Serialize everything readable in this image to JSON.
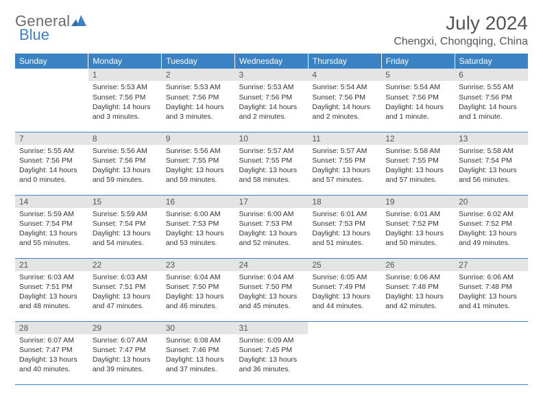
{
  "brand": {
    "name_part1": "General",
    "name_part2": "Blue"
  },
  "title": "July 2024",
  "location": "Chengxi, Chongqing, China",
  "weekdays": [
    "Sunday",
    "Monday",
    "Tuesday",
    "Wednesday",
    "Thursday",
    "Friday",
    "Saturday"
  ],
  "colors": {
    "header_bg": "#3b82c4",
    "daynum_bg": "#e4e4e4",
    "rule": "#3b82c4"
  },
  "weeks": [
    [
      {
        "n": "",
        "sr": "",
        "ss": "",
        "dl": ""
      },
      {
        "n": "1",
        "sr": "5:53 AM",
        "ss": "7:56 PM",
        "dl": "14 hours and 3 minutes."
      },
      {
        "n": "2",
        "sr": "5:53 AM",
        "ss": "7:56 PM",
        "dl": "14 hours and 3 minutes."
      },
      {
        "n": "3",
        "sr": "5:53 AM",
        "ss": "7:56 PM",
        "dl": "14 hours and 2 minutes."
      },
      {
        "n": "4",
        "sr": "5:54 AM",
        "ss": "7:56 PM",
        "dl": "14 hours and 2 minutes."
      },
      {
        "n": "5",
        "sr": "5:54 AM",
        "ss": "7:56 PM",
        "dl": "14 hours and 1 minute."
      },
      {
        "n": "6",
        "sr": "5:55 AM",
        "ss": "7:56 PM",
        "dl": "14 hours and 1 minute."
      }
    ],
    [
      {
        "n": "7",
        "sr": "5:55 AM",
        "ss": "7:56 PM",
        "dl": "14 hours and 0 minutes."
      },
      {
        "n": "8",
        "sr": "5:56 AM",
        "ss": "7:56 PM",
        "dl": "13 hours and 59 minutes."
      },
      {
        "n": "9",
        "sr": "5:56 AM",
        "ss": "7:55 PM",
        "dl": "13 hours and 59 minutes."
      },
      {
        "n": "10",
        "sr": "5:57 AM",
        "ss": "7:55 PM",
        "dl": "13 hours and 58 minutes."
      },
      {
        "n": "11",
        "sr": "5:57 AM",
        "ss": "7:55 PM",
        "dl": "13 hours and 57 minutes."
      },
      {
        "n": "12",
        "sr": "5:58 AM",
        "ss": "7:55 PM",
        "dl": "13 hours and 57 minutes."
      },
      {
        "n": "13",
        "sr": "5:58 AM",
        "ss": "7:54 PM",
        "dl": "13 hours and 56 minutes."
      }
    ],
    [
      {
        "n": "14",
        "sr": "5:59 AM",
        "ss": "7:54 PM",
        "dl": "13 hours and 55 minutes."
      },
      {
        "n": "15",
        "sr": "5:59 AM",
        "ss": "7:54 PM",
        "dl": "13 hours and 54 minutes."
      },
      {
        "n": "16",
        "sr": "6:00 AM",
        "ss": "7:53 PM",
        "dl": "13 hours and 53 minutes."
      },
      {
        "n": "17",
        "sr": "6:00 AM",
        "ss": "7:53 PM",
        "dl": "13 hours and 52 minutes."
      },
      {
        "n": "18",
        "sr": "6:01 AM",
        "ss": "7:53 PM",
        "dl": "13 hours and 51 minutes."
      },
      {
        "n": "19",
        "sr": "6:01 AM",
        "ss": "7:52 PM",
        "dl": "13 hours and 50 minutes."
      },
      {
        "n": "20",
        "sr": "6:02 AM",
        "ss": "7:52 PM",
        "dl": "13 hours and 49 minutes."
      }
    ],
    [
      {
        "n": "21",
        "sr": "6:03 AM",
        "ss": "7:51 PM",
        "dl": "13 hours and 48 minutes."
      },
      {
        "n": "22",
        "sr": "6:03 AM",
        "ss": "7:51 PM",
        "dl": "13 hours and 47 minutes."
      },
      {
        "n": "23",
        "sr": "6:04 AM",
        "ss": "7:50 PM",
        "dl": "13 hours and 46 minutes."
      },
      {
        "n": "24",
        "sr": "6:04 AM",
        "ss": "7:50 PM",
        "dl": "13 hours and 45 minutes."
      },
      {
        "n": "25",
        "sr": "6:05 AM",
        "ss": "7:49 PM",
        "dl": "13 hours and 44 minutes."
      },
      {
        "n": "26",
        "sr": "6:06 AM",
        "ss": "7:48 PM",
        "dl": "13 hours and 42 minutes."
      },
      {
        "n": "27",
        "sr": "6:06 AM",
        "ss": "7:48 PM",
        "dl": "13 hours and 41 minutes."
      }
    ],
    [
      {
        "n": "28",
        "sr": "6:07 AM",
        "ss": "7:47 PM",
        "dl": "13 hours and 40 minutes."
      },
      {
        "n": "29",
        "sr": "6:07 AM",
        "ss": "7:47 PM",
        "dl": "13 hours and 39 minutes."
      },
      {
        "n": "30",
        "sr": "6:08 AM",
        "ss": "7:46 PM",
        "dl": "13 hours and 37 minutes."
      },
      {
        "n": "31",
        "sr": "6:09 AM",
        "ss": "7:45 PM",
        "dl": "13 hours and 36 minutes."
      },
      {
        "n": "",
        "sr": "",
        "ss": "",
        "dl": ""
      },
      {
        "n": "",
        "sr": "",
        "ss": "",
        "dl": ""
      },
      {
        "n": "",
        "sr": "",
        "ss": "",
        "dl": ""
      }
    ]
  ],
  "labels": {
    "sunrise": "Sunrise:",
    "sunset": "Sunset:",
    "daylight": "Daylight:"
  }
}
